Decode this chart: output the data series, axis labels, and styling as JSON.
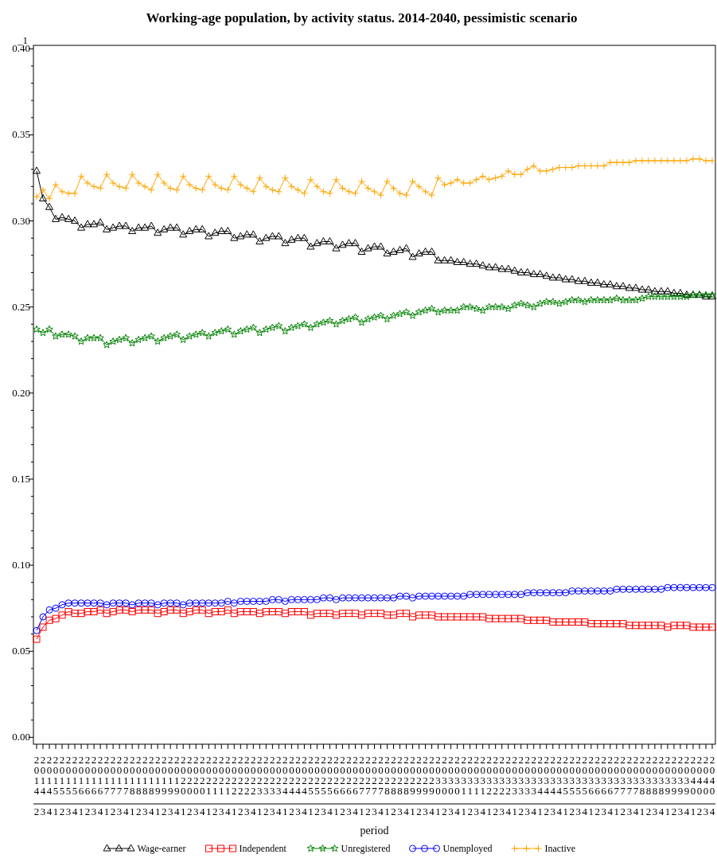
{
  "chart_data": {
    "type": "line",
    "title": "Working-age population, by activity status. 2014-2040, pessimistic scenario",
    "xlabel": "period",
    "ylabel": "_1",
    "categories": [
      "2014 2",
      "2014 3",
      "2014 4",
      "2015 1",
      "2015 2",
      "2015 3",
      "2015 4",
      "2016 1",
      "2016 2",
      "2016 3",
      "2016 4",
      "2017 1",
      "2017 2",
      "2017 3",
      "2017 4",
      "2018 1",
      "2018 2",
      "2018 3",
      "2018 4",
      "2019 1",
      "2019 2",
      "2019 3",
      "2019 4",
      "2020 1",
      "2020 2",
      "2020 3",
      "2020 4",
      "2021 1",
      "2021 2",
      "2021 3",
      "2021 4",
      "2022 1",
      "2022 2",
      "2022 3",
      "2022 4",
      "2023 1",
      "2023 2",
      "2023 3",
      "2023 4",
      "2024 1",
      "2024 2",
      "2024 3",
      "2024 4",
      "2025 1",
      "2025 2",
      "2025 3",
      "2025 4",
      "2026 1",
      "2026 2",
      "2026 3",
      "2026 4",
      "2027 1",
      "2027 2",
      "2027 3",
      "2027 4",
      "2028 1",
      "2028 2",
      "2028 3",
      "2028 4",
      "2029 1",
      "2029 2",
      "2029 3",
      "2029 4",
      "2030 1",
      "2030 2",
      "2030 3",
      "2030 4",
      "2031 1",
      "2031 2",
      "2031 3",
      "2031 4",
      "2032 1",
      "2032 2",
      "2032 3",
      "2032 4",
      "2033 1",
      "2033 2",
      "2033 3",
      "2033 4",
      "2034 1",
      "2034 2",
      "2034 3",
      "2034 4",
      "2035 1",
      "2035 2",
      "2035 3",
      "2035 4",
      "2036 1",
      "2036 2",
      "2036 3",
      "2036 4",
      "2037 1",
      "2037 2",
      "2037 3",
      "2037 4",
      "2038 1",
      "2038 2",
      "2038 3",
      "2038 4",
      "2039 1",
      "2039 2",
      "2039 3",
      "2039 4",
      "2040 1",
      "2040 2",
      "2040 3",
      "2040 4"
    ],
    "ylim": [
      -0.004,
      0.402
    ],
    "yticks": [
      {
        "value": 0,
        "label": "0.00"
      },
      {
        "value": 0.01,
        "label": null
      },
      {
        "value": 0.02,
        "label": null
      },
      {
        "value": 0.03,
        "label": null
      },
      {
        "value": 0.04,
        "label": null
      },
      {
        "value": 0.05,
        "label": "0.05"
      },
      {
        "value": 0.06,
        "label": null
      },
      {
        "value": 0.07,
        "label": null
      },
      {
        "value": 0.08,
        "label": null
      },
      {
        "value": 0.09,
        "label": null
      },
      {
        "value": 0.1,
        "label": "0.10"
      },
      {
        "value": 0.11,
        "label": null
      },
      {
        "value": 0.12,
        "label": null
      },
      {
        "value": 0.13,
        "label": null
      },
      {
        "value": 0.14,
        "label": null
      },
      {
        "value": 0.15,
        "label": "0.15"
      },
      {
        "value": 0.16,
        "label": null
      },
      {
        "value": 0.17,
        "label": null
      },
      {
        "value": 0.18,
        "label": null
      },
      {
        "value": 0.19,
        "label": null
      },
      {
        "value": 0.2,
        "label": "0.20"
      },
      {
        "value": 0.21,
        "label": null
      },
      {
        "value": 0.22,
        "label": null
      },
      {
        "value": 0.23,
        "label": null
      },
      {
        "value": 0.24,
        "label": null
      },
      {
        "value": 0.25,
        "label": "0.25"
      },
      {
        "value": 0.26,
        "label": null
      },
      {
        "value": 0.27,
        "label": null
      },
      {
        "value": 0.28,
        "label": null
      },
      {
        "value": 0.29,
        "label": null
      },
      {
        "value": 0.3,
        "label": "0.30"
      },
      {
        "value": 0.31,
        "label": null
      },
      {
        "value": 0.32,
        "label": null
      },
      {
        "value": 0.33,
        "label": null
      },
      {
        "value": 0.34,
        "label": null
      },
      {
        "value": 0.35,
        "label": "0.35"
      },
      {
        "value": 0.36,
        "label": null
      },
      {
        "value": 0.37,
        "label": null
      },
      {
        "value": 0.38,
        "label": null
      },
      {
        "value": 0.39,
        "label": null
      },
      {
        "value": 0.4,
        "label": "0.40"
      }
    ],
    "legend": "bottom",
    "line_style": "solid",
    "series": [
      {
        "name": "Wage-earner",
        "color": "#000000",
        "marker": "triangle",
        "values": [
          0.329,
          0.313,
          0.308,
          0.301,
          0.302,
          0.301,
          0.3,
          0.296,
          0.298,
          0.298,
          0.299,
          0.295,
          0.296,
          0.297,
          0.297,
          0.294,
          0.296,
          0.296,
          0.297,
          0.293,
          0.295,
          0.296,
          0.296,
          0.292,
          0.294,
          0.295,
          0.295,
          0.291,
          0.293,
          0.294,
          0.294,
          0.29,
          0.291,
          0.292,
          0.292,
          0.288,
          0.29,
          0.291,
          0.291,
          0.287,
          0.289,
          0.29,
          0.29,
          0.285,
          0.287,
          0.288,
          0.288,
          0.284,
          0.286,
          0.287,
          0.287,
          0.282,
          0.284,
          0.285,
          0.285,
          0.281,
          0.282,
          0.283,
          0.284,
          0.279,
          0.281,
          0.282,
          0.282,
          0.277,
          0.277,
          0.277,
          0.276,
          0.276,
          0.275,
          0.275,
          0.274,
          0.273,
          0.273,
          0.272,
          0.272,
          0.271,
          0.27,
          0.27,
          0.269,
          0.269,
          0.268,
          0.267,
          0.267,
          0.266,
          0.266,
          0.265,
          0.265,
          0.264,
          0.264,
          0.263,
          0.263,
          0.262,
          0.262,
          0.261,
          0.261,
          0.26,
          0.26,
          0.259,
          0.259,
          0.259,
          0.258,
          0.258,
          0.257,
          0.257,
          0.257,
          0.256,
          0.256
        ]
      },
      {
        "name": "Independent",
        "color": "#ff0000",
        "marker": "square",
        "values": [
          0.057,
          0.064,
          0.068,
          0.069,
          0.071,
          0.073,
          0.072,
          0.072,
          0.073,
          0.073,
          0.074,
          0.072,
          0.073,
          0.074,
          0.074,
          0.073,
          0.074,
          0.074,
          0.074,
          0.072,
          0.073,
          0.074,
          0.074,
          0.072,
          0.073,
          0.074,
          0.074,
          0.072,
          0.073,
          0.073,
          0.074,
          0.072,
          0.073,
          0.073,
          0.073,
          0.072,
          0.073,
          0.073,
          0.073,
          0.072,
          0.073,
          0.073,
          0.073,
          0.071,
          0.072,
          0.072,
          0.072,
          0.071,
          0.072,
          0.072,
          0.072,
          0.071,
          0.072,
          0.072,
          0.072,
          0.071,
          0.071,
          0.072,
          0.072,
          0.07,
          0.071,
          0.071,
          0.071,
          0.07,
          0.07,
          0.07,
          0.07,
          0.07,
          0.07,
          0.07,
          0.07,
          0.069,
          0.069,
          0.069,
          0.069,
          0.069,
          0.069,
          0.068,
          0.068,
          0.068,
          0.068,
          0.067,
          0.067,
          0.067,
          0.067,
          0.067,
          0.067,
          0.066,
          0.066,
          0.066,
          0.066,
          0.066,
          0.066,
          0.065,
          0.065,
          0.065,
          0.065,
          0.065,
          0.065,
          0.064,
          0.065,
          0.065,
          0.065,
          0.064,
          0.064,
          0.064,
          0.064
        ]
      },
      {
        "name": "Unregistered",
        "color": "#008000",
        "marker": "star",
        "values": [
          0.237,
          0.235,
          0.237,
          0.233,
          0.234,
          0.234,
          0.233,
          0.23,
          0.232,
          0.232,
          0.232,
          0.228,
          0.23,
          0.231,
          0.232,
          0.229,
          0.231,
          0.232,
          0.233,
          0.23,
          0.232,
          0.233,
          0.234,
          0.231,
          0.233,
          0.234,
          0.235,
          0.233,
          0.235,
          0.236,
          0.237,
          0.234,
          0.236,
          0.237,
          0.238,
          0.235,
          0.237,
          0.238,
          0.239,
          0.236,
          0.238,
          0.239,
          0.24,
          0.238,
          0.24,
          0.241,
          0.242,
          0.24,
          0.242,
          0.243,
          0.244,
          0.241,
          0.243,
          0.244,
          0.245,
          0.243,
          0.245,
          0.246,
          0.247,
          0.245,
          0.247,
          0.248,
          0.249,
          0.247,
          0.248,
          0.248,
          0.248,
          0.25,
          0.25,
          0.249,
          0.248,
          0.25,
          0.25,
          0.25,
          0.249,
          0.251,
          0.252,
          0.251,
          0.25,
          0.252,
          0.253,
          0.253,
          0.252,
          0.253,
          0.254,
          0.254,
          0.253,
          0.254,
          0.254,
          0.254,
          0.254,
          0.255,
          0.254,
          0.254,
          0.254,
          0.255,
          0.256,
          0.256,
          0.256,
          0.256,
          0.256,
          0.256,
          0.256,
          0.257,
          0.257,
          0.257,
          0.257
        ]
      },
      {
        "name": "Unemployed",
        "color": "#0000ff",
        "marker": "circle",
        "values": [
          0.062,
          0.07,
          0.074,
          0.075,
          0.077,
          0.078,
          0.078,
          0.078,
          0.078,
          0.078,
          0.078,
          0.077,
          0.078,
          0.078,
          0.078,
          0.077,
          0.078,
          0.078,
          0.078,
          0.077,
          0.078,
          0.078,
          0.078,
          0.077,
          0.078,
          0.078,
          0.078,
          0.078,
          0.078,
          0.078,
          0.079,
          0.078,
          0.079,
          0.079,
          0.079,
          0.079,
          0.079,
          0.08,
          0.08,
          0.079,
          0.08,
          0.08,
          0.08,
          0.08,
          0.08,
          0.081,
          0.081,
          0.08,
          0.081,
          0.081,
          0.081,
          0.081,
          0.081,
          0.081,
          0.081,
          0.081,
          0.081,
          0.082,
          0.082,
          0.081,
          0.082,
          0.082,
          0.082,
          0.082,
          0.082,
          0.082,
          0.082,
          0.082,
          0.083,
          0.083,
          0.083,
          0.083,
          0.083,
          0.083,
          0.083,
          0.083,
          0.083,
          0.084,
          0.084,
          0.084,
          0.084,
          0.084,
          0.084,
          0.084,
          0.085,
          0.085,
          0.085,
          0.085,
          0.085,
          0.085,
          0.085,
          0.086,
          0.086,
          0.086,
          0.086,
          0.086,
          0.086,
          0.086,
          0.086,
          0.087,
          0.087,
          0.087,
          0.087,
          0.087,
          0.087,
          0.087,
          0.087
        ]
      },
      {
        "name": "Inactive",
        "color": "#ffa500",
        "marker": "cross",
        "values": [
          0.314,
          0.318,
          0.313,
          0.321,
          0.317,
          0.316,
          0.316,
          0.326,
          0.322,
          0.32,
          0.319,
          0.327,
          0.322,
          0.32,
          0.319,
          0.327,
          0.322,
          0.32,
          0.318,
          0.327,
          0.322,
          0.319,
          0.318,
          0.326,
          0.321,
          0.319,
          0.318,
          0.326,
          0.321,
          0.319,
          0.318,
          0.326,
          0.321,
          0.319,
          0.317,
          0.325,
          0.32,
          0.318,
          0.317,
          0.325,
          0.32,
          0.318,
          0.316,
          0.324,
          0.32,
          0.317,
          0.316,
          0.324,
          0.319,
          0.317,
          0.316,
          0.323,
          0.319,
          0.317,
          0.315,
          0.323,
          0.319,
          0.316,
          0.315,
          0.323,
          0.32,
          0.317,
          0.315,
          0.325,
          0.321,
          0.322,
          0.324,
          0.322,
          0.322,
          0.324,
          0.326,
          0.324,
          0.325,
          0.326,
          0.329,
          0.327,
          0.327,
          0.33,
          0.332,
          0.329,
          0.329,
          0.33,
          0.331,
          0.331,
          0.331,
          0.332,
          0.332,
          0.332,
          0.332,
          0.332,
          0.334,
          0.334,
          0.334,
          0.334,
          0.335,
          0.335,
          0.335,
          0.335,
          0.335,
          0.335,
          0.335,
          0.335,
          0.335,
          0.336,
          0.336,
          0.335,
          0.335
        ]
      }
    ]
  }
}
